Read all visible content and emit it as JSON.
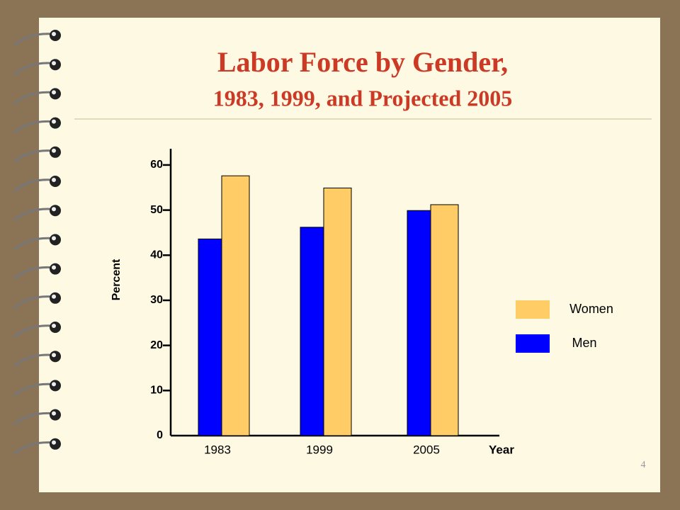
{
  "chart_data": {
    "type": "bar",
    "title": "Labor Force by Gender,",
    "subtitle": "1983, 1999, and Projected 2005",
    "y_label": "Percent",
    "x_label": "Year",
    "categories": [
      "1983",
      "1999",
      "2005"
    ],
    "series": [
      {
        "name": "Men",
        "color": "#0000ff",
        "values": [
          43.6,
          46.2,
          49.9
        ]
      },
      {
        "name": "Women",
        "color": "#ffcc66",
        "values": [
          57.6,
          54.9,
          51.2
        ]
      }
    ],
    "ylim": [
      0,
      63.6
    ],
    "yticks": [
      0,
      10,
      20,
      30,
      40,
      50,
      60
    ]
  },
  "page_number": "4"
}
